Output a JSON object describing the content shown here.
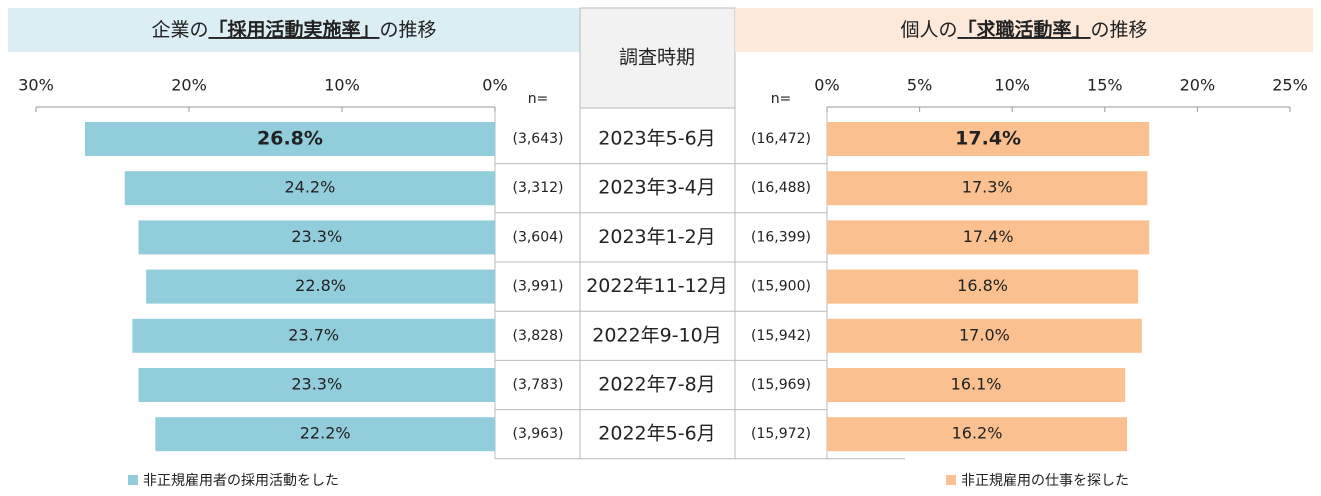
{
  "chart_data": [
    {
      "type": "bar",
      "orientation": "horizontal",
      "direction": "reversed",
      "title_parts": [
        "企業の",
        "「採用活動実施率」",
        "の推移"
      ],
      "period_header": "調査時期",
      "categories": [
        "2023年5-6月",
        "2023年3-4月",
        "2023年1-2月",
        "2022年11-12月",
        "2022年9-10月",
        "2022年7-8月",
        "2022年5-6月"
      ],
      "n_label": "n=",
      "n_values": [
        "(3,643)",
        "(3,312)",
        "(3,604)",
        "(3,991)",
        "(3,828)",
        "(3,783)",
        "(3,963)"
      ],
      "series": [
        {
          "name": "非正規雇用者の採用活動をした",
          "color": "#92cddc",
          "values": [
            26.8,
            24.2,
            23.3,
            22.8,
            23.7,
            23.3,
            22.2
          ],
          "value_labels": [
            "26.8%",
            "24.2%",
            "23.3%",
            "22.8%",
            "23.7%",
            "23.3%",
            "22.2%"
          ]
        }
      ],
      "xlim": [
        0,
        30
      ],
      "xticks": [
        {
          "value": 30,
          "label": "30%"
        },
        {
          "value": 20,
          "label": "20%"
        },
        {
          "value": 10,
          "label": "10%"
        },
        {
          "value": 0,
          "label": "0%"
        }
      ]
    },
    {
      "type": "bar",
      "orientation": "horizontal",
      "direction": "normal",
      "title_parts": [
        "個人の",
        "「求職活動率」",
        "の推移"
      ],
      "n_label": "n=",
      "n_values": [
        "(16,472)",
        "(16,488)",
        "(16,399)",
        "(15,900)",
        "(15,942)",
        "(15,969)",
        "(15,972)"
      ],
      "series": [
        {
          "name": "非正規雇用の仕事を探した",
          "color": "#fac090",
          "values": [
            17.4,
            17.3,
            17.4,
            16.8,
            17.0,
            16.1,
            16.2
          ],
          "value_labels": [
            "17.4%",
            "17.3%",
            "17.4%",
            "16.8%",
            "17.0%",
            "16.1%",
            "16.2%"
          ]
        }
      ],
      "xlim": [
        0,
        25
      ],
      "xticks": [
        {
          "value": 0,
          "label": "0%"
        },
        {
          "value": 5,
          "label": "5%"
        },
        {
          "value": 10,
          "label": "10%"
        },
        {
          "value": 15,
          "label": "15%"
        },
        {
          "value": 20,
          "label": "20%"
        },
        {
          "value": 25,
          "label": "25%"
        }
      ]
    }
  ]
}
